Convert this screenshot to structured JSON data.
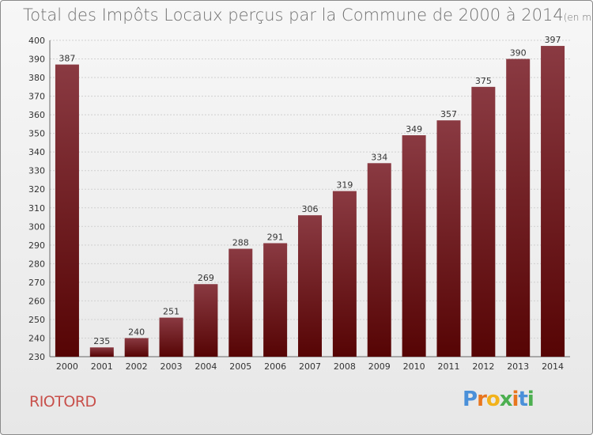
{
  "header": {
    "title": "Total des Impôts Locaux perçus par la Commune de 2000 à 2014",
    "unit": "(en milliers d'€)"
  },
  "footer": {
    "commune": "RIOTORD",
    "logo_parts": [
      "P",
      "r",
      "o",
      "x",
      "i",
      "t",
      "i"
    ]
  },
  "colors": {
    "bar_top": "#8a3a42",
    "bar_bottom": "#560404",
    "commune": "#c8504b",
    "logo": [
      "#4a90d9",
      "#e8761e",
      "#f2b21b",
      "#4caf50",
      "#e8761e",
      "#4a90d9",
      "#4caf50"
    ]
  },
  "chart_data": {
    "type": "bar",
    "title": "Total des Impôts Locaux perçus par la Commune de 2000 à 2014",
    "xlabel": "",
    "ylabel": "",
    "ylim": [
      230,
      400
    ],
    "yticks": [
      230,
      240,
      250,
      260,
      270,
      280,
      290,
      300,
      310,
      320,
      330,
      340,
      350,
      360,
      370,
      380,
      390,
      400
    ],
    "grid": true,
    "categories": [
      "2000",
      "2001",
      "2002",
      "2003",
      "2004",
      "2005",
      "2006",
      "2007",
      "2008",
      "2009",
      "2010",
      "2011",
      "2012",
      "2013",
      "2014"
    ],
    "values": [
      387,
      235,
      240,
      251,
      269,
      288,
      291,
      306,
      319,
      334,
      349,
      357,
      375,
      390,
      397
    ]
  }
}
